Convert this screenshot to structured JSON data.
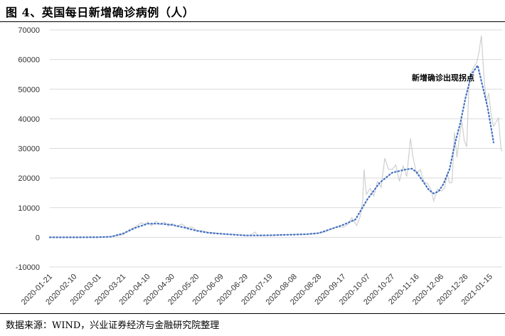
{
  "header": {
    "title": "图 4、英国每日新增确诊病例（人）"
  },
  "footer": {
    "source": "数据来源：WIND，兴业证券经济与金融研究院整理"
  },
  "chart_data": {
    "type": "line",
    "title": "图 4、英国每日新增确诊病例（人）",
    "ylim": [
      -10000,
      70000
    ],
    "yticks": [
      -10000,
      0,
      10000,
      20000,
      30000,
      40000,
      50000,
      60000,
      70000
    ],
    "x_tick_labels": [
      "2020-01-21",
      "2020-02-10",
      "2020-03-01",
      "2020-03-21",
      "2020-04-10",
      "2020-04-30",
      "2020-05-20",
      "2020-06-09",
      "2020-06-29",
      "2020-07-19",
      "2020-08-08",
      "2020-08-28",
      "2020-09-17",
      "2020-10-07",
      "2020-10-27",
      "2020-11-16",
      "2020-12-06",
      "2020-12-26",
      "2021-01-15"
    ],
    "annotation": "新增确诊出现拐点",
    "colors": {
      "daily": "#cfcfcf",
      "smoothed": "#4472c4",
      "grid": "#d9d9d9"
    },
    "series": [
      {
        "key": "daily",
        "style": "solid",
        "points": [
          [
            "2020-01-21",
            0
          ],
          [
            "2020-02-10",
            0
          ],
          [
            "2020-03-01",
            20
          ],
          [
            "2020-03-08",
            80
          ],
          [
            "2020-03-15",
            400
          ],
          [
            "2020-03-21",
            900
          ],
          [
            "2020-03-26",
            2600
          ],
          [
            "2020-03-31",
            3500
          ],
          [
            "2020-04-05",
            5000
          ],
          [
            "2020-04-08",
            4100
          ],
          [
            "2020-04-10",
            5200
          ],
          [
            "2020-04-13",
            3900
          ],
          [
            "2020-04-17",
            5400
          ],
          [
            "2020-04-20",
            4300
          ],
          [
            "2020-04-24",
            5100
          ],
          [
            "2020-04-27",
            3800
          ],
          [
            "2020-04-30",
            4600
          ],
          [
            "2020-05-04",
            3700
          ],
          [
            "2020-05-08",
            4500
          ],
          [
            "2020-05-12",
            3300
          ],
          [
            "2020-05-16",
            3500
          ],
          [
            "2020-05-20",
            2400
          ],
          [
            "2020-05-25",
            2200
          ],
          [
            "2020-05-30",
            1700
          ],
          [
            "2020-06-04",
            1500
          ],
          [
            "2020-06-09",
            1200
          ],
          [
            "2020-06-14",
            1100
          ],
          [
            "2020-06-19",
            1000
          ],
          [
            "2020-06-24",
            800
          ],
          [
            "2020-06-29",
            600
          ],
          [
            "2020-07-03",
            700
          ],
          [
            "2020-07-07",
            1800
          ],
          [
            "2020-07-09",
            600
          ],
          [
            "2020-07-14",
            700
          ],
          [
            "2020-07-19",
            600
          ],
          [
            "2020-07-24",
            750
          ],
          [
            "2020-07-29",
            800
          ],
          [
            "2020-08-03",
            900
          ],
          [
            "2020-08-08",
            1000
          ],
          [
            "2020-08-13",
            1100
          ],
          [
            "2020-08-18",
            1000
          ],
          [
            "2020-08-23",
            1200
          ],
          [
            "2020-08-28",
            1500
          ],
          [
            "2020-09-02",
            1800
          ],
          [
            "2020-09-07",
            2900
          ],
          [
            "2020-09-12",
            3500
          ],
          [
            "2020-09-17",
            3400
          ],
          [
            "2020-09-21",
            4400
          ],
          [
            "2020-09-24",
            6600
          ],
          [
            "2020-09-28",
            4000
          ],
          [
            "2020-10-01",
            7100
          ],
          [
            "2020-10-03",
            12800
          ],
          [
            "2020-10-04",
            22900
          ],
          [
            "2020-10-06",
            14500
          ],
          [
            "2020-10-09",
            16500
          ],
          [
            "2020-10-12",
            13900
          ],
          [
            "2020-10-15",
            18900
          ],
          [
            "2020-10-18",
            16900
          ],
          [
            "2020-10-21",
            26700
          ],
          [
            "2020-10-24",
            23000
          ],
          [
            "2020-10-27",
            22900
          ],
          [
            "2020-10-30",
            24400
          ],
          [
            "2020-11-02",
            18900
          ],
          [
            "2020-11-05",
            24100
          ],
          [
            "2020-11-08",
            20500
          ],
          [
            "2020-11-11",
            33400
          ],
          [
            "2020-11-13",
            27300
          ],
          [
            "2020-11-16",
            21300
          ],
          [
            "2020-11-19",
            22900
          ],
          [
            "2020-11-22",
            18700
          ],
          [
            "2020-11-25",
            18200
          ],
          [
            "2020-11-28",
            15900
          ],
          [
            "2020-11-30",
            12300
          ],
          [
            "2020-12-03",
            16200
          ],
          [
            "2020-12-06",
            15600
          ],
          [
            "2020-12-09",
            16600
          ],
          [
            "2020-12-11",
            21700
          ],
          [
            "2020-12-13",
            18400
          ],
          [
            "2020-12-15",
            18500
          ],
          [
            "2020-12-17",
            35400
          ],
          [
            "2020-12-19",
            27000
          ],
          [
            "2020-12-21",
            33400
          ],
          [
            "2020-12-23",
            39200
          ],
          [
            "2020-12-25",
            32700
          ],
          [
            "2020-12-27",
            30500
          ],
          [
            "2020-12-29",
            53100
          ],
          [
            "2020-12-31",
            55900
          ],
          [
            "2021-01-02",
            57700
          ],
          [
            "2021-01-04",
            58700
          ],
          [
            "2021-01-06",
            62300
          ],
          [
            "2021-01-08",
            68100
          ],
          [
            "2021-01-10",
            54900
          ],
          [
            "2021-01-12",
            45500
          ],
          [
            "2021-01-14",
            48600
          ],
          [
            "2021-01-16",
            41300
          ],
          [
            "2021-01-18",
            37500
          ],
          [
            "2021-01-20",
            38900
          ],
          [
            "2021-01-22",
            40300
          ],
          [
            "2021-01-24",
            30000
          ],
          [
            "2021-01-25",
            29000
          ]
        ]
      },
      {
        "key": "smoothed",
        "style": "dotted",
        "points": [
          [
            "2020-01-21",
            0
          ],
          [
            "2020-02-10",
            0
          ],
          [
            "2020-03-01",
            50
          ],
          [
            "2020-03-11",
            200
          ],
          [
            "2020-03-21",
            1300
          ],
          [
            "2020-03-31",
            3200
          ],
          [
            "2020-04-10",
            4600
          ],
          [
            "2020-04-20",
            4600
          ],
          [
            "2020-04-30",
            4200
          ],
          [
            "2020-05-10",
            3300
          ],
          [
            "2020-05-20",
            2200
          ],
          [
            "2020-05-30",
            1500
          ],
          [
            "2020-06-09",
            1200
          ],
          [
            "2020-06-19",
            900
          ],
          [
            "2020-06-29",
            650
          ],
          [
            "2020-07-09",
            650
          ],
          [
            "2020-07-19",
            700
          ],
          [
            "2020-07-29",
            800
          ],
          [
            "2020-08-08",
            900
          ],
          [
            "2020-08-18",
            1050
          ],
          [
            "2020-08-28",
            1400
          ],
          [
            "2020-09-07",
            2800
          ],
          [
            "2020-09-17",
            4200
          ],
          [
            "2020-09-27",
            6000
          ],
          [
            "2020-10-07",
            13000
          ],
          [
            "2020-10-17",
            18500
          ],
          [
            "2020-10-27",
            21800
          ],
          [
            "2020-11-06",
            22800
          ],
          [
            "2020-11-12",
            23200
          ],
          [
            "2020-11-16",
            22000
          ],
          [
            "2020-11-21",
            19000
          ],
          [
            "2020-11-26",
            16000
          ],
          [
            "2020-11-30",
            14800
          ],
          [
            "2020-12-04",
            15500
          ],
          [
            "2020-12-08",
            18000
          ],
          [
            "2020-12-13",
            23000
          ],
          [
            "2020-12-17",
            31000
          ],
          [
            "2020-12-22",
            39000
          ],
          [
            "2020-12-26",
            47000
          ],
          [
            "2020-12-31",
            55000
          ],
          [
            "2021-01-05",
            58000
          ],
          [
            "2021-01-09",
            51000
          ],
          [
            "2021-01-13",
            44000
          ],
          [
            "2021-01-16",
            37000
          ],
          [
            "2021-01-18",
            32000
          ]
        ]
      }
    ]
  }
}
